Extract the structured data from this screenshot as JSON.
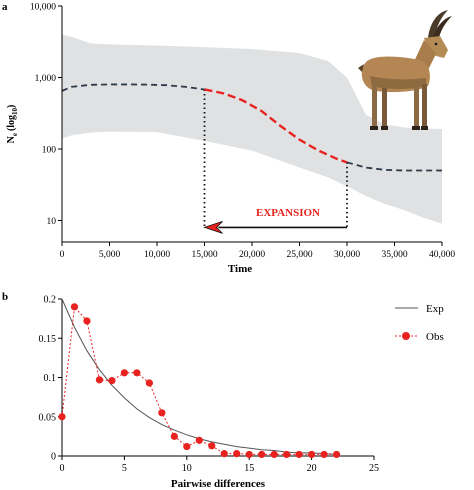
{
  "chart_data": [
    {
      "panel_label": "a",
      "type": "line",
      "xlabel": "Time",
      "ylabel_main": "N",
      "ylabel_sub": "e",
      "ylabel_paren": "(log",
      "ylabel_paren_sub": "10",
      "ylabel_paren_close": ")",
      "xlim": [
        0,
        40000
      ],
      "ylim": [
        5,
        10000
      ],
      "yscale": "log",
      "x_ticks": [
        0,
        5000,
        10000,
        15000,
        20000,
        25000,
        30000,
        35000,
        40000
      ],
      "x_tick_labels": [
        "0",
        "5,000",
        "10,000",
        "15,000",
        "20,000",
        "25,000",
        "30,000",
        "35,000",
        "40,000"
      ],
      "y_ticks": [
        10,
        100,
        1000,
        10000
      ],
      "y_tick_labels": [
        "10",
        "100",
        "1,000",
        "10,000"
      ],
      "series": [
        {
          "role": "median",
          "x": [
            0,
            1000,
            3000,
            5000,
            7000,
            9000,
            11000,
            13000,
            15000
          ],
          "y": [
            650,
            740,
            790,
            800,
            800,
            795,
            780,
            740,
            680
          ],
          "color": "#2e3a4a",
          "dash": "dashed"
        },
        {
          "role": "expansion",
          "x": [
            15000,
            17000,
            19000,
            21000,
            23000,
            25000,
            27000,
            29000,
            30000
          ],
          "y": [
            680,
            600,
            480,
            340,
            210,
            135,
            95,
            72,
            65
          ],
          "color": "#e8231f",
          "dash": "dashed"
        },
        {
          "role": "median",
          "x": [
            30000,
            32000,
            34000,
            36000,
            38000,
            40000
          ],
          "y": [
            65,
            55,
            51,
            50,
            50,
            50
          ],
          "color": "#2e3a4a",
          "dash": "dashed"
        }
      ],
      "band": {
        "x": [
          0,
          1000,
          3000,
          5000,
          10000,
          15000,
          20000,
          25000,
          28000,
          30000,
          32000,
          34000,
          36000,
          38000,
          40000
        ],
        "upper": [
          4000,
          3700,
          3000,
          2900,
          2800,
          2650,
          2500,
          2200,
          1700,
          1000,
          300,
          220,
          200,
          195,
          190
        ],
        "lower": [
          140,
          155,
          170,
          175,
          172,
          130,
          95,
          55,
          40,
          30,
          22,
          17,
          14,
          11,
          9
        ]
      },
      "annotations": {
        "expansion_label": "EXPANSION",
        "arrow_from": [
          30000,
          8
        ],
        "arrow_to": [
          15000,
          8
        ],
        "vline_x": [
          15000,
          30000
        ]
      },
      "colors": {
        "band": "#dfe1e2",
        "median": "#2e3a4a",
        "expansion": "#e8231f",
        "arrow": "#111111"
      }
    },
    {
      "panel_label": "b",
      "type": "line",
      "xlabel": "Pairwise differences",
      "xlim": [
        0,
        25
      ],
      "ylim": [
        0,
        0.2
      ],
      "x_ticks": [
        0,
        5,
        10,
        15,
        20,
        25
      ],
      "x_tick_labels": [
        "0",
        "5",
        "10",
        "15",
        "20",
        "25"
      ],
      "y_ticks": [
        0,
        0.05,
        0.1,
        0.15,
        0.2
      ],
      "y_tick_labels": [
        "0",
        "0.05",
        "0.1",
        "0.15",
        "0.2"
      ],
      "series": [
        {
          "name": "Exp",
          "x": [
            0,
            1,
            2,
            3,
            4,
            5,
            6,
            7,
            8,
            9,
            10,
            11,
            12,
            13,
            14,
            15,
            16,
            17,
            18,
            19,
            20,
            21,
            22
          ],
          "y": [
            0.2,
            0.164,
            0.134,
            0.11,
            0.09,
            0.074,
            0.06,
            0.049,
            0.04,
            0.033,
            0.027,
            0.022,
            0.018,
            0.015,
            0.012,
            0.01,
            0.008,
            0.007,
            0.005,
            0.004,
            0.004,
            0.003,
            0.002
          ],
          "color": "#555555"
        },
        {
          "name": "Obs",
          "x": [
            0,
            1,
            2,
            3,
            4,
            5,
            6,
            7,
            8,
            9,
            10,
            11,
            12,
            13,
            14,
            15,
            16,
            17,
            18,
            19,
            20,
            21,
            22
          ],
          "y": [
            0.05,
            0.19,
            0.172,
            0.097,
            0.096,
            0.106,
            0.106,
            0.093,
            0.055,
            0.025,
            0.012,
            0.02,
            0.013,
            0.003,
            0.003,
            0.002,
            0.002,
            0.002,
            0.002,
            0.002,
            0.002,
            0.002,
            0.002
          ],
          "color": "#e8231f"
        }
      ],
      "legend_position": "top-right"
    }
  ]
}
